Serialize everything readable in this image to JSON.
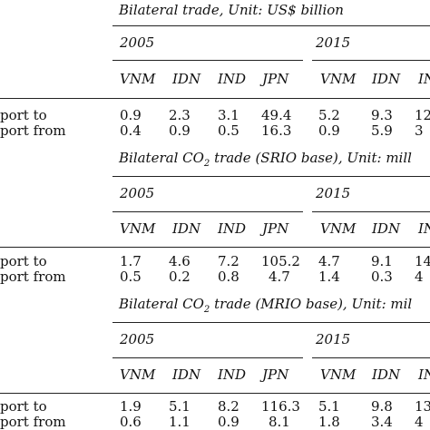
{
  "columns": [
    "VNM",
    "IDN",
    "IND",
    "JPN"
  ],
  "sections": [
    {
      "title": "Bilateral trade, Unit: US$ billion",
      "years": [
        "2005",
        "2015"
      ],
      "rows": [
        {
          "label": "port to",
          "v2005": [
            "0.9",
            "2.3",
            "3.1",
            "49.4"
          ],
          "v2015": [
            "5.2",
            "9.3",
            "12"
          ]
        },
        {
          "label": "port from",
          "v2005": [
            "0.4",
            "0.9",
            "0.5",
            "16.3"
          ],
          "v2015": [
            "0.9",
            "5.9",
            "3"
          ]
        }
      ]
    },
    {
      "title_pre": "Bilateral CO",
      "title_sub": "2",
      "title_post": " trade (SRIO base), Unit: mill",
      "years": [
        "2005",
        "2015"
      ],
      "rows": [
        {
          "label": "port to",
          "v2005": [
            "1.7",
            "4.6",
            "7.2",
            "105.2"
          ],
          "v2015": [
            "4.7",
            "9.1",
            "14"
          ]
        },
        {
          "label": "port from",
          "v2005": [
            "0.5",
            "0.2",
            "0.8",
            "4.7"
          ],
          "v2015": [
            "1.4",
            "0.3",
            "4"
          ]
        }
      ]
    },
    {
      "title_pre": "Bilateral CO",
      "title_sub": "2",
      "title_post": " trade (MRIO base), Unit: mil",
      "years": [
        "2005",
        "2015"
      ],
      "rows": [
        {
          "label": "port to",
          "v2005": [
            "1.9",
            "5.1",
            "8.2",
            "116.3"
          ],
          "v2015": [
            "5.1",
            "9.8",
            "13"
          ]
        },
        {
          "label": "port from",
          "v2005": [
            "0.6",
            "1.1",
            "0.9",
            "8.1"
          ],
          "v2015": [
            "1.8",
            "3.4",
            "4"
          ]
        }
      ]
    }
  ]
}
